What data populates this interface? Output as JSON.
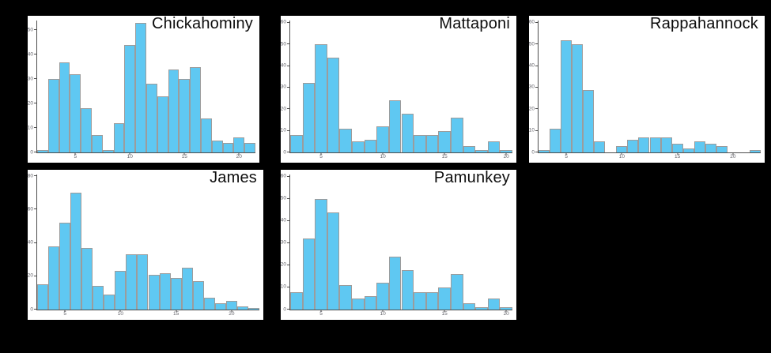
{
  "colors": {
    "background": "#000000",
    "panel": "#ffffff",
    "bar_fill": "#5fc8f2",
    "bar_border": "#9c9c9c",
    "axis": "#4d4d4d",
    "tick_label": "#5f5f66",
    "title": "#0d0d0d"
  },
  "chart_data": [
    {
      "type": "bar",
      "subtype": "histogram",
      "title": "Chickahominy",
      "xmin": 1.5,
      "xmax": 21.5,
      "bin_width": 1,
      "bin_centers": [
        2,
        3,
        4,
        5,
        6,
        7,
        8,
        9,
        10,
        11,
        12,
        13,
        14,
        15,
        16,
        17,
        18,
        19,
        20,
        21
      ],
      "values": [
        1,
        30,
        37,
        32,
        18,
        7,
        1,
        12,
        44,
        53,
        28,
        23,
        34,
        30,
        35,
        14,
        5,
        4,
        6,
        4
      ],
      "ymax": 54,
      "yticks": [
        0,
        10,
        20,
        30,
        40,
        50
      ],
      "xticks": [
        5,
        10,
        15,
        20
      ],
      "xlabel": "",
      "ylabel": "",
      "grid": false,
      "legend": "none"
    },
    {
      "type": "bar",
      "subtype": "histogram",
      "title": "Mattaponi",
      "xmin": 2.5,
      "xmax": 20.5,
      "bin_width": 1,
      "bin_centers": [
        3,
        4,
        5,
        6,
        7,
        8,
        9,
        10,
        11,
        12,
        13,
        14,
        15,
        16,
        17,
        18,
        19,
        20
      ],
      "values": [
        8,
        32,
        50,
        44,
        11,
        5,
        6,
        12,
        24,
        18,
        8,
        8,
        10,
        16,
        3,
        1,
        5,
        1
      ],
      "ymax": 61,
      "yticks": [
        0,
        10,
        20,
        30,
        40,
        50,
        60
      ],
      "xticks": [
        5,
        10,
        15,
        20
      ],
      "xlabel": "",
      "ylabel": "",
      "grid": false,
      "legend": "none"
    },
    {
      "type": "bar",
      "subtype": "histogram",
      "title": "Rappahannock",
      "xmin": 2.5,
      "xmax": 22.5,
      "bin_width": 1,
      "bin_centers": [
        3,
        4,
        5,
        6,
        7,
        8,
        9,
        10,
        11,
        12,
        13,
        14,
        15,
        16,
        17,
        18,
        19,
        20,
        21,
        22
      ],
      "values": [
        1,
        11,
        52,
        50,
        29,
        5,
        0,
        3,
        6,
        7,
        7,
        7,
        4,
        2,
        5,
        4,
        3,
        0,
        0,
        1
      ],
      "ymax": 61,
      "yticks": [
        0,
        10,
        20,
        30,
        40,
        50,
        60
      ],
      "xticks": [
        5,
        10,
        15,
        20
      ],
      "xlabel": "",
      "ylabel": "",
      "grid": false,
      "legend": "none"
    },
    {
      "type": "bar",
      "subtype": "histogram",
      "title": "James",
      "xmin": 2.5,
      "xmax": 22.5,
      "bin_width": 1,
      "bin_centers": [
        3,
        4,
        5,
        6,
        7,
        8,
        9,
        10,
        11,
        12,
        13,
        14,
        15,
        16,
        17,
        18,
        19,
        20,
        21,
        22
      ],
      "values": [
        15,
        38,
        52,
        70,
        37,
        14,
        9,
        23,
        33,
        33,
        21,
        22,
        19,
        25,
        17,
        7,
        4,
        5,
        2,
        1
      ],
      "ymax": 81,
      "yticks": [
        0,
        20,
        40,
        60,
        80
      ],
      "xticks": [
        5,
        10,
        15,
        20
      ],
      "xlabel": "",
      "ylabel": "",
      "grid": false,
      "legend": "none"
    },
    {
      "type": "bar",
      "subtype": "histogram",
      "title": "Pamunkey",
      "xmin": 2.5,
      "xmax": 20.5,
      "bin_width": 1,
      "bin_centers": [
        3,
        4,
        5,
        6,
        7,
        8,
        9,
        10,
        11,
        12,
        13,
        14,
        15,
        16,
        17,
        18,
        19,
        20
      ],
      "values": [
        8,
        32,
        50,
        44,
        11,
        5,
        6,
        12,
        24,
        18,
        8,
        8,
        10,
        16,
        3,
        1,
        5,
        1
      ],
      "ymax": 61,
      "yticks": [
        0,
        10,
        20,
        30,
        40,
        50,
        60
      ],
      "xticks": [
        5,
        10,
        15,
        20
      ],
      "xlabel": "",
      "ylabel": "",
      "grid": false,
      "legend": "none"
    }
  ]
}
